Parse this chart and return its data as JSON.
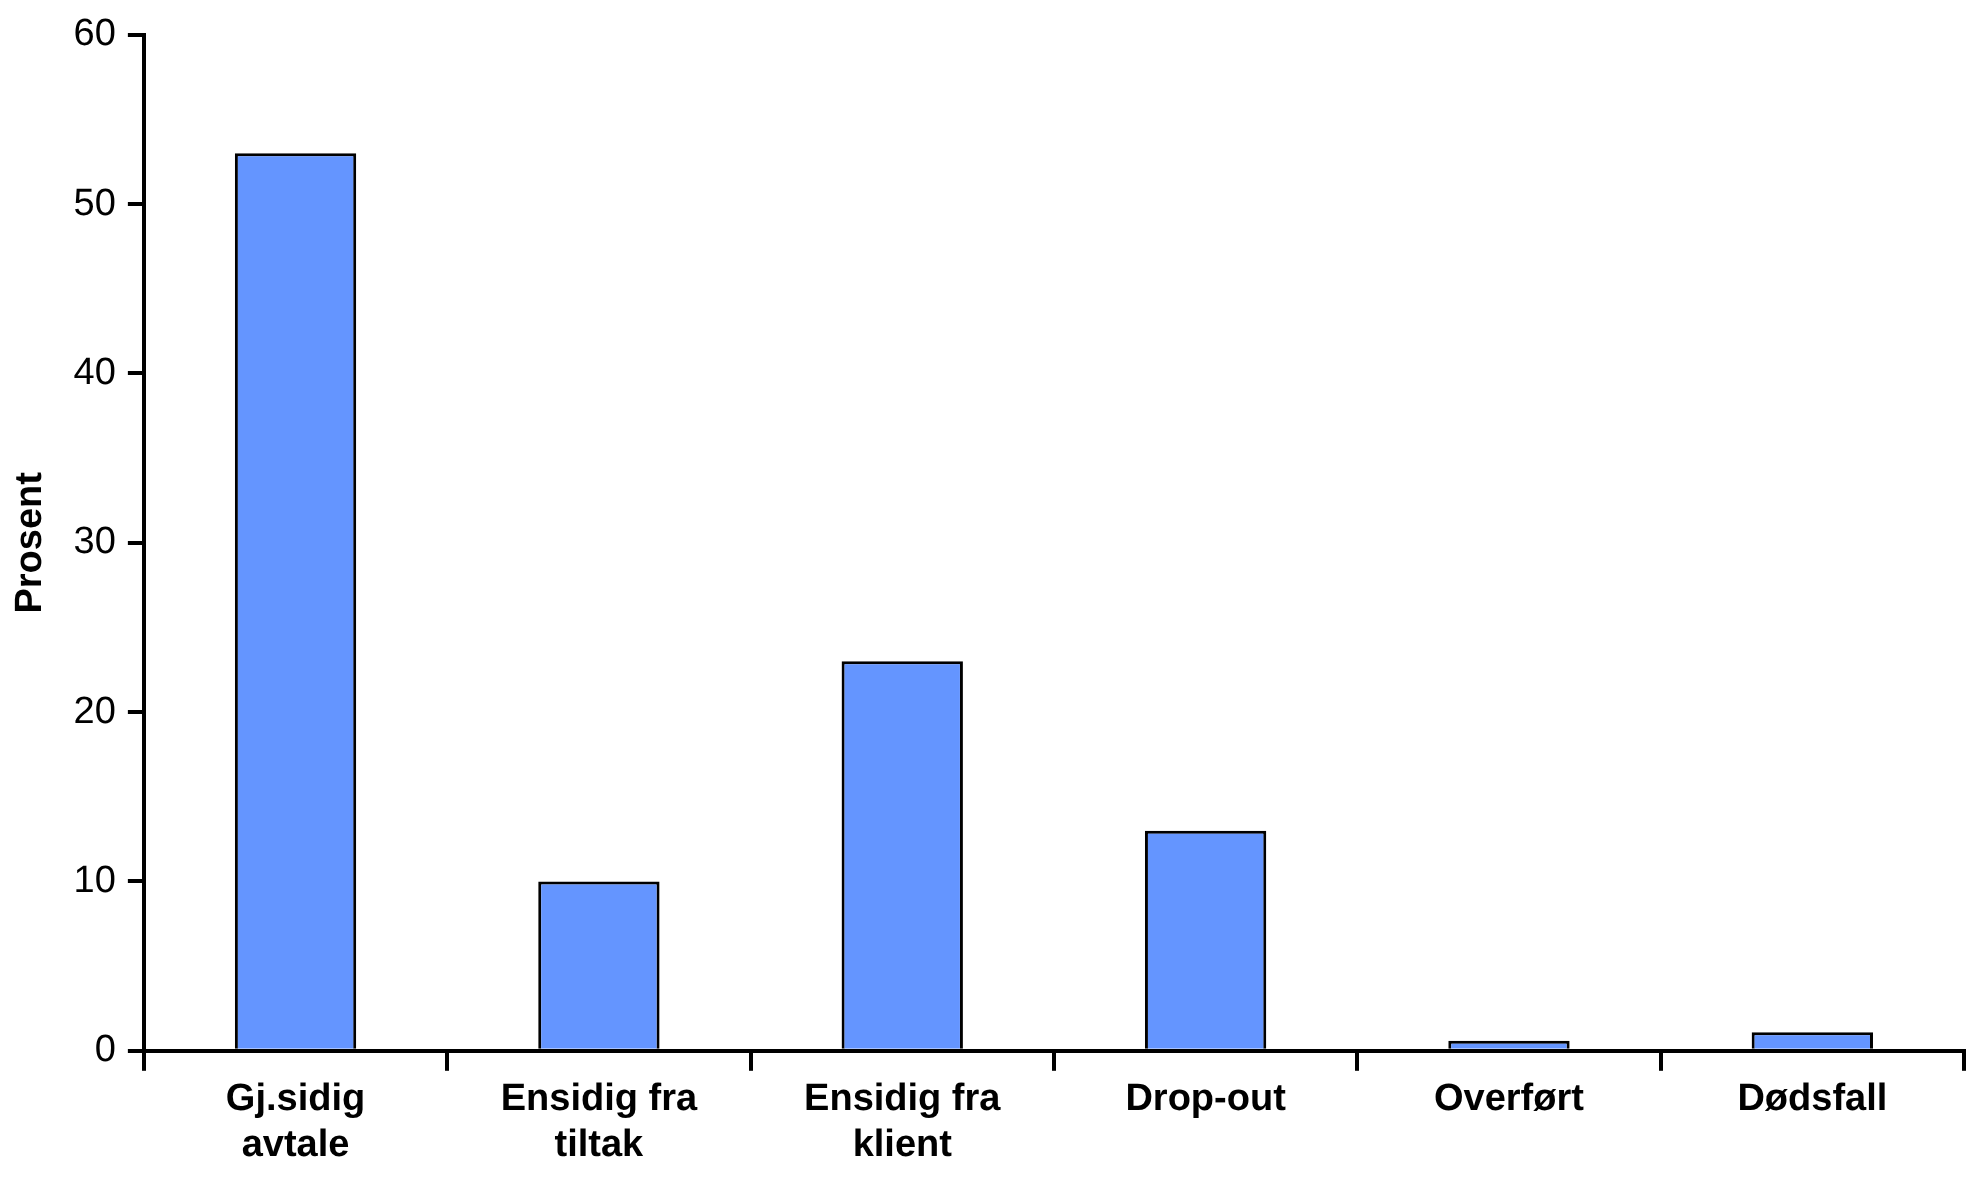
{
  "chart_data": {
    "type": "bar",
    "ylabel": "Prosent",
    "categories": [
      "Gj.sidig avtale",
      "Ensidig fra tiltak",
      "Ensidig fra klient",
      "Drop-out",
      "Overført",
      "Dødsfall"
    ],
    "values": [
      53,
      10,
      23,
      13,
      0.6,
      1.1
    ],
    "color": "#6495ff",
    "ylim": [
      0,
      60
    ],
    "yticks": [
      0,
      10,
      20,
      30,
      40,
      50,
      60
    ],
    "grid": false,
    "legend": false
  }
}
